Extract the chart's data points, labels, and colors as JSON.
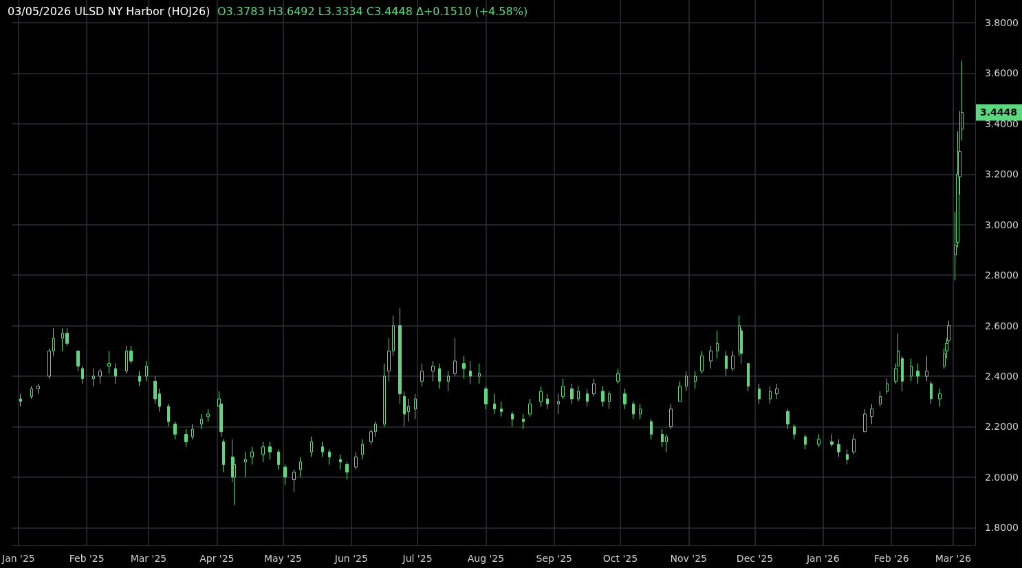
{
  "chart_data": {
    "type": "candlestick",
    "title": "03/05/2026 ULSD NY Harbor (HOJ26)",
    "subtitle": "O3.3783 H3.6492 L3.3334 C3.4448 Δ+0.1510 (+4.58%)",
    "color": "#5cd67f",
    "grid": true,
    "xlim": [
      "2024-12-29",
      "2026-03-11"
    ],
    "xticks": [
      {
        "value": "2025-01-01",
        "label": "Jan '25"
      },
      {
        "value": "2025-02-01",
        "label": "Feb '25"
      },
      {
        "value": "2025-03-01",
        "label": "Mar '25"
      },
      {
        "value": "2025-04-01",
        "label": "Apr '25"
      },
      {
        "value": "2025-05-01",
        "label": "May '25"
      },
      {
        "value": "2025-06-01",
        "label": "Jun '25"
      },
      {
        "value": "2025-07-01",
        "label": "Jul '25"
      },
      {
        "value": "2025-08-01",
        "label": "Aug '25"
      },
      {
        "value": "2025-09-01",
        "label": "Sep '25"
      },
      {
        "value": "2025-10-01",
        "label": "Oct '25"
      },
      {
        "value": "2025-11-01",
        "label": "Nov '25"
      },
      {
        "value": "2025-12-01",
        "label": "Dec '25"
      },
      {
        "value": "2026-01-01",
        "label": "Jan '26"
      },
      {
        "value": "2026-02-01",
        "label": "Feb '26"
      },
      {
        "value": "2026-03-01",
        "label": "Mar '26"
      }
    ],
    "ylim": [
      1.73,
      3.89
    ],
    "yticks": [
      {
        "value": 1.8,
        "label": "1.8000"
      },
      {
        "value": 2.0,
        "label": "2.0000"
      },
      {
        "value": 2.2,
        "label": "2.2000"
      },
      {
        "value": 2.4,
        "label": "2.4000"
      },
      {
        "value": 2.6,
        "label": "2.6000"
      },
      {
        "value": 2.8,
        "label": "2.8000"
      },
      {
        "value": 3.0,
        "label": "3.0000"
      },
      {
        "value": 3.2,
        "label": "3.2000"
      },
      {
        "value": 3.4,
        "label": "3.4000"
      },
      {
        "value": 3.6,
        "label": "3.6000"
      },
      {
        "value": 3.8,
        "label": "3.8000"
      }
    ],
    "annotations": [
      {
        "text": "3.4448",
        "x": "2026-03-05",
        "y": 3.4448
      }
    ],
    "x": [
      "2025-01-02",
      "2025-01-07",
      "2025-01-10",
      "2025-01-15",
      "2025-01-17",
      "2025-01-21",
      "2025-01-23",
      "2025-01-28",
      "2025-01-30",
      "2025-02-04",
      "2025-02-07",
      "2025-02-11",
      "2025-02-14",
      "2025-02-19",
      "2025-02-21",
      "2025-02-25",
      "2025-02-28",
      "2025-03-04",
      "2025-03-06",
      "2025-03-10",
      "2025-03-13",
      "2025-03-18",
      "2025-03-21",
      "2025-03-25",
      "2025-03-28",
      "2025-04-02",
      "2025-04-03",
      "2025-04-04",
      "2025-04-08",
      "2025-04-09",
      "2025-04-14",
      "2025-04-17",
      "2025-04-22",
      "2025-04-25",
      "2025-04-29",
      "2025-05-02",
      "2025-05-06",
      "2025-05-09",
      "2025-05-14",
      "2025-05-19",
      "2025-05-22",
      "2025-05-27",
      "2025-05-30",
      "2025-06-03",
      "2025-06-06",
      "2025-06-10",
      "2025-06-12",
      "2025-06-16",
      "2025-06-18",
      "2025-06-20",
      "2025-06-23",
      "2025-06-25",
      "2025-06-27",
      "2025-06-30",
      "2025-07-03",
      "2025-07-08",
      "2025-07-11",
      "2025-07-15",
      "2025-07-18",
      "2025-07-22",
      "2025-07-25",
      "2025-07-29",
      "2025-08-01",
      "2025-08-05",
      "2025-08-08",
      "2025-08-13",
      "2025-08-18",
      "2025-08-21",
      "2025-08-26",
      "2025-08-29",
      "2025-09-03",
      "2025-09-05",
      "2025-09-09",
      "2025-09-12",
      "2025-09-16",
      "2025-09-19",
      "2025-09-23",
      "2025-09-26",
      "2025-09-30",
      "2025-10-03",
      "2025-10-07",
      "2025-10-10",
      "2025-10-15",
      "2025-10-20",
      "2025-10-22",
      "2025-10-24",
      "2025-10-28",
      "2025-10-31",
      "2025-11-04",
      "2025-11-07",
      "2025-11-11",
      "2025-11-14",
      "2025-11-18",
      "2025-11-21",
      "2025-11-24",
      "2025-11-25",
      "2025-11-28",
      "2025-12-03",
      "2025-12-08",
      "2025-12-11",
      "2025-12-16",
      "2025-12-19",
      "2025-12-24",
      "2025-12-30",
      "2026-01-05",
      "2026-01-08",
      "2026-01-12",
      "2026-01-15",
      "2026-01-20",
      "2026-01-23",
      "2026-01-27",
      "2026-01-30",
      "2026-02-03",
      "2026-02-04",
      "2026-02-06",
      "2026-02-10",
      "2026-02-13",
      "2026-02-17",
      "2026-02-19",
      "2026-02-23",
      "2026-02-25",
      "2026-02-26",
      "2026-02-27",
      "2026-03-02",
      "2026-03-03",
      "2026-03-04",
      "2026-03-05"
    ],
    "ohlc": [
      [
        2.31,
        2.33,
        2.28,
        2.3
      ],
      [
        2.32,
        2.36,
        2.31,
        2.35
      ],
      [
        2.35,
        2.37,
        2.33,
        2.36
      ],
      [
        2.4,
        2.51,
        2.39,
        2.5
      ],
      [
        2.5,
        2.59,
        2.48,
        2.55
      ],
      [
        2.55,
        2.59,
        2.5,
        2.57
      ],
      [
        2.57,
        2.59,
        2.52,
        2.53
      ],
      [
        2.5,
        2.5,
        2.42,
        2.44
      ],
      [
        2.43,
        2.44,
        2.37,
        2.39
      ],
      [
        2.39,
        2.43,
        2.36,
        2.4
      ],
      [
        2.4,
        2.43,
        2.37,
        2.42
      ],
      [
        2.44,
        2.5,
        2.41,
        2.45
      ],
      [
        2.43,
        2.45,
        2.37,
        2.4
      ],
      [
        2.42,
        2.52,
        2.41,
        2.5
      ],
      [
        2.5,
        2.52,
        2.45,
        2.46
      ],
      [
        2.4,
        2.42,
        2.36,
        2.38
      ],
      [
        2.4,
        2.46,
        2.38,
        2.44
      ],
      [
        2.38,
        2.4,
        2.29,
        2.31
      ],
      [
        2.33,
        2.35,
        2.26,
        2.28
      ],
      [
        2.28,
        2.29,
        2.2,
        2.22
      ],
      [
        2.21,
        2.22,
        2.15,
        2.17
      ],
      [
        2.17,
        2.19,
        2.12,
        2.14
      ],
      [
        2.16,
        2.21,
        2.15,
        2.19
      ],
      [
        2.21,
        2.25,
        2.19,
        2.23
      ],
      [
        2.24,
        2.27,
        2.22,
        2.25
      ],
      [
        2.28,
        2.34,
        2.28,
        2.31
      ],
      [
        2.29,
        2.29,
        2.16,
        2.18
      ],
      [
        2.14,
        2.15,
        2.02,
        2.05
      ],
      [
        2.08,
        2.15,
        1.98,
        2.0
      ],
      [
        2.0,
        2.08,
        1.89,
        2.05
      ],
      [
        2.06,
        2.1,
        2.0,
        2.07
      ],
      [
        2.08,
        2.12,
        2.05,
        2.1
      ],
      [
        2.09,
        2.14,
        2.06,
        2.12
      ],
      [
        2.12,
        2.14,
        2.07,
        2.1
      ],
      [
        2.1,
        2.11,
        2.03,
        2.05
      ],
      [
        2.04,
        2.05,
        1.97,
        2.0
      ],
      [
        1.99,
        2.03,
        1.94,
        2.02
      ],
      [
        2.03,
        2.08,
        2.0,
        2.06
      ],
      [
        2.1,
        2.16,
        2.08,
        2.14
      ],
      [
        2.12,
        2.14,
        2.08,
        2.1
      ],
      [
        2.1,
        2.11,
        2.05,
        2.08
      ],
      [
        2.07,
        2.09,
        2.03,
        2.06
      ],
      [
        2.05,
        2.06,
        1.99,
        2.02
      ],
      [
        2.04,
        2.1,
        2.03,
        2.08
      ],
      [
        2.09,
        2.15,
        2.07,
        2.13
      ],
      [
        2.14,
        2.19,
        2.13,
        2.18
      ],
      [
        2.18,
        2.22,
        2.16,
        2.21
      ],
      [
        2.21,
        2.45,
        2.2,
        2.4
      ],
      [
        2.42,
        2.55,
        2.38,
        2.5
      ],
      [
        2.5,
        2.64,
        2.48,
        2.6
      ],
      [
        2.6,
        2.67,
        2.29,
        2.33
      ],
      [
        2.32,
        2.34,
        2.2,
        2.25
      ],
      [
        2.26,
        2.31,
        2.22,
        2.28
      ],
      [
        2.27,
        2.33,
        2.23,
        2.31
      ],
      [
        2.38,
        2.45,
        2.36,
        2.42
      ],
      [
        2.42,
        2.46,
        2.38,
        2.44
      ],
      [
        2.43,
        2.45,
        2.35,
        2.38
      ],
      [
        2.38,
        2.42,
        2.34,
        2.4
      ],
      [
        2.41,
        2.55,
        2.4,
        2.46
      ],
      [
        2.45,
        2.48,
        2.39,
        2.43
      ],
      [
        2.42,
        2.46,
        2.37,
        2.4
      ],
      [
        2.4,
        2.45,
        2.37,
        2.41
      ],
      [
        2.35,
        2.36,
        2.27,
        2.29
      ],
      [
        2.29,
        2.33,
        2.25,
        2.27
      ],
      [
        2.27,
        2.3,
        2.24,
        2.26
      ],
      [
        2.25,
        2.26,
        2.2,
        2.23
      ],
      [
        2.23,
        2.25,
        2.19,
        2.22
      ],
      [
        2.25,
        2.31,
        2.24,
        2.29
      ],
      [
        2.3,
        2.36,
        2.28,
        2.34
      ],
      [
        2.31,
        2.33,
        2.27,
        2.29
      ],
      [
        2.29,
        2.33,
        2.25,
        2.3
      ],
      [
        2.32,
        2.39,
        2.31,
        2.36
      ],
      [
        2.35,
        2.37,
        2.29,
        2.31
      ],
      [
        2.31,
        2.36,
        2.3,
        2.34
      ],
      [
        2.33,
        2.35,
        2.28,
        2.3
      ],
      [
        2.33,
        2.39,
        2.32,
        2.37
      ],
      [
        2.34,
        2.36,
        2.28,
        2.3
      ],
      [
        2.3,
        2.34,
        2.27,
        2.33
      ],
      [
        2.38,
        2.43,
        2.37,
        2.41
      ],
      [
        2.33,
        2.35,
        2.27,
        2.29
      ],
      [
        2.29,
        2.3,
        2.23,
        2.25
      ],
      [
        2.25,
        2.29,
        2.23,
        2.27
      ],
      [
        2.22,
        2.23,
        2.15,
        2.17
      ],
      [
        2.17,
        2.19,
        2.12,
        2.14
      ],
      [
        2.14,
        2.17,
        2.1,
        2.16
      ],
      [
        2.2,
        2.29,
        2.19,
        2.27
      ],
      [
        2.3,
        2.38,
        2.3,
        2.36
      ],
      [
        2.36,
        2.42,
        2.34,
        2.4
      ],
      [
        2.38,
        2.42,
        2.35,
        2.4
      ],
      [
        2.42,
        2.5,
        2.41,
        2.48
      ],
      [
        2.46,
        2.52,
        2.43,
        2.5
      ],
      [
        2.5,
        2.58,
        2.47,
        2.53
      ],
      [
        2.48,
        2.5,
        2.4,
        2.43
      ],
      [
        2.43,
        2.5,
        2.42,
        2.48
      ],
      [
        2.5,
        2.64,
        2.48,
        2.6
      ],
      [
        2.58,
        2.59,
        2.45,
        2.49
      ],
      [
        2.45,
        2.45,
        2.34,
        2.36
      ],
      [
        2.35,
        2.37,
        2.29,
        2.31
      ],
      [
        2.31,
        2.36,
        2.29,
        2.34
      ],
      [
        2.33,
        2.37,
        2.31,
        2.35
      ],
      [
        2.26,
        2.27,
        2.19,
        2.21
      ],
      [
        2.2,
        2.21,
        2.15,
        2.17
      ],
      [
        2.16,
        2.17,
        2.11,
        2.13
      ],
      [
        2.13,
        2.17,
        2.12,
        2.15
      ],
      [
        2.14,
        2.17,
        2.12,
        2.13
      ],
      [
        2.13,
        2.15,
        2.08,
        2.1
      ],
      [
        2.09,
        2.11,
        2.05,
        2.07
      ],
      [
        2.1,
        2.17,
        2.09,
        2.15
      ],
      [
        2.18,
        2.27,
        2.18,
        2.25
      ],
      [
        2.24,
        2.29,
        2.21,
        2.27
      ],
      [
        2.29,
        2.34,
        2.28,
        2.32
      ],
      [
        2.34,
        2.39,
        2.33,
        2.37
      ],
      [
        2.38,
        2.45,
        2.37,
        2.43
      ],
      [
        2.44,
        2.57,
        2.44,
        2.5
      ],
      [
        2.47,
        2.48,
        2.34,
        2.38
      ],
      [
        2.4,
        2.47,
        2.38,
        2.44
      ],
      [
        2.42,
        2.45,
        2.37,
        2.4
      ],
      [
        2.4,
        2.48,
        2.38,
        2.42
      ],
      [
        2.37,
        2.38,
        2.29,
        2.31
      ],
      [
        2.31,
        2.35,
        2.28,
        2.33
      ],
      [
        2.44,
        2.51,
        2.43,
        2.49
      ],
      [
        2.5,
        2.55,
        2.47,
        2.53
      ],
      [
        2.54,
        2.62,
        2.53,
        2.6
      ],
      [
        2.88,
        3.05,
        2.78,
        2.92
      ],
      [
        2.93,
        3.37,
        2.91,
        3.2
      ],
      [
        3.19,
        3.45,
        3.12,
        3.29
      ],
      [
        3.3783,
        3.6492,
        3.3334,
        3.4448
      ]
    ]
  }
}
